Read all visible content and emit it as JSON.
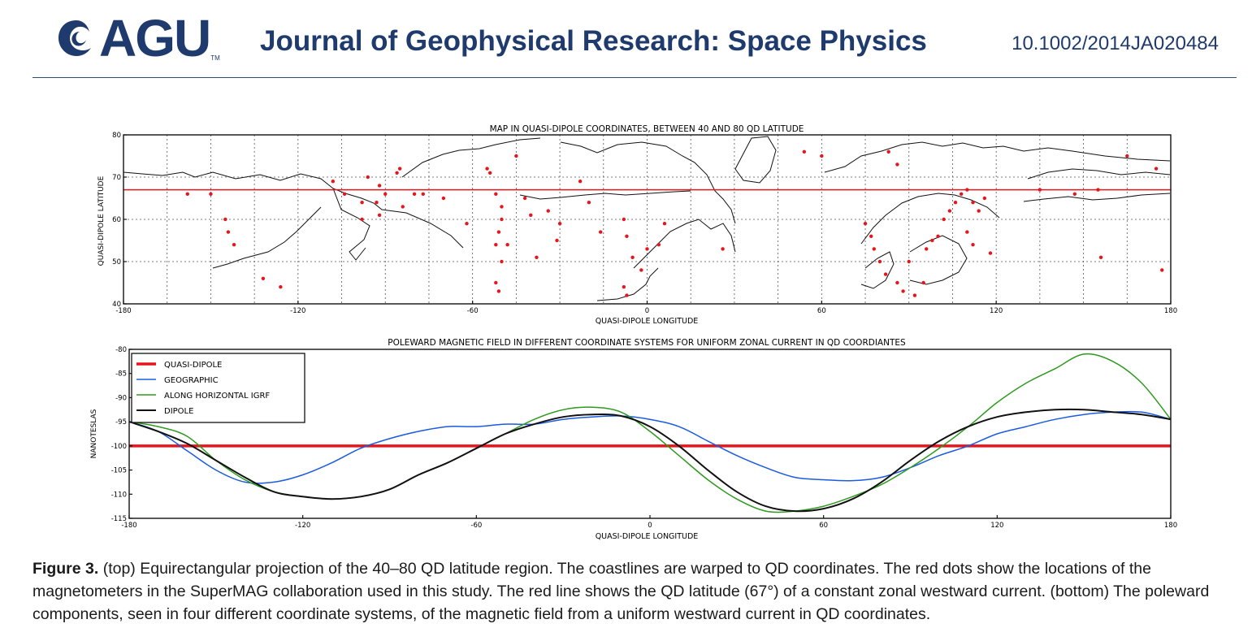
{
  "header": {
    "logo_text": "AGU",
    "logo_tm": "TM",
    "journal_title": "Journal of Geophysical Research: Space Physics",
    "doi": "10.1002/2014JA020484"
  },
  "colors": {
    "brand": "#1f3b6e",
    "qd": "#e8141b",
    "geographic": "#1a5be0",
    "igrf": "#2e9a1e",
    "dipole": "#111111"
  },
  "chart_data": [
    {
      "type": "scatter",
      "title": "MAP IN QUASI-DIPOLE COORDINATES, BETWEEN 40 AND 80 QD LATITUDE",
      "xlabel": "QUASI-DIPOLE LONGITUDE",
      "ylabel": "QUASI-DIPOLE LATITUDE",
      "xlim": [
        -180,
        180
      ],
      "ylim": [
        40,
        80
      ],
      "xticks": [
        "-180",
        "-120",
        "-60",
        "0",
        "60",
        "120",
        "180"
      ],
      "yticks": [
        "40",
        "50",
        "60",
        "70",
        "80"
      ],
      "grid": true,
      "reference_line_lat": 67,
      "stations": [
        [
          -158,
          66
        ],
        [
          -150,
          66
        ],
        [
          -145,
          60
        ],
        [
          -144,
          57
        ],
        [
          -142,
          54
        ],
        [
          -132,
          46
        ],
        [
          -126,
          44
        ],
        [
          -108,
          69
        ],
        [
          -104,
          66
        ],
        [
          -98,
          64
        ],
        [
          -98,
          60
        ],
        [
          -92,
          68
        ],
        [
          -93,
          64
        ],
        [
          -92,
          61
        ],
        [
          -90,
          66
        ],
        [
          -86,
          71
        ],
        [
          -84,
          63
        ],
        [
          -80,
          66
        ],
        [
          -77,
          66
        ],
        [
          -70,
          65
        ],
        [
          -62,
          59
        ],
        [
          -55,
          72
        ],
        [
          -54,
          71
        ],
        [
          -52,
          66
        ],
        [
          -50,
          63
        ],
        [
          -50,
          60
        ],
        [
          -51,
          57
        ],
        [
          -52,
          54
        ],
        [
          -48,
          54
        ],
        [
          -50,
          50
        ],
        [
          -52,
          45
        ],
        [
          -51,
          43
        ],
        [
          -42,
          65
        ],
        [
          -40,
          61
        ],
        [
          -38,
          51
        ],
        [
          -34,
          62
        ],
        [
          -31,
          55
        ],
        [
          -30,
          59
        ],
        [
          -23,
          69
        ],
        [
          -20,
          64
        ],
        [
          -16,
          57
        ],
        [
          -8,
          60
        ],
        [
          -5,
          51
        ],
        [
          -2,
          48
        ],
        [
          -7,
          56
        ],
        [
          0,
          53
        ],
        [
          4,
          54
        ],
        [
          6,
          59
        ],
        [
          -8,
          44
        ],
        [
          -7,
          42
        ],
        [
          26,
          53
        ],
        [
          54,
          76
        ],
        [
          60,
          75
        ],
        [
          75,
          59
        ],
        [
          77,
          56
        ],
        [
          78,
          53
        ],
        [
          80,
          50
        ],
        [
          82,
          47
        ],
        [
          86,
          45
        ],
        [
          88,
          43
        ],
        [
          90,
          50
        ],
        [
          92,
          42
        ],
        [
          95,
          45
        ],
        [
          96,
          53
        ],
        [
          98,
          55
        ],
        [
          100,
          56
        ],
        [
          102,
          60
        ],
        [
          104,
          62
        ],
        [
          106,
          64
        ],
        [
          108,
          66
        ],
        [
          110,
          67
        ],
        [
          112,
          64
        ],
        [
          114,
          62
        ],
        [
          116,
          65
        ],
        [
          110,
          57
        ],
        [
          112,
          54
        ],
        [
          118,
          52
        ],
        [
          135,
          67
        ],
        [
          147,
          66
        ],
        [
          155,
          67
        ],
        [
          156,
          51
        ],
        [
          165,
          75
        ],
        [
          175,
          72
        ],
        [
          177,
          48
        ],
        [
          83,
          76
        ],
        [
          86,
          73
        ],
        [
          -96,
          70
        ],
        [
          -85,
          72
        ],
        [
          -45,
          75
        ]
      ]
    },
    {
      "type": "line",
      "title": "POLEWARD MAGNETIC FIELD IN DIFFERENT COORDINATE SYSTEMS FOR UNIFORM ZONAL CURRENT IN QD COORDIANTES",
      "xlabel": "QUASI-DIPOLE LONGITUDE",
      "ylabel": "NANOTESLAS",
      "xlim": [
        -180,
        180
      ],
      "ylim": [
        -115,
        -80
      ],
      "xticks": [
        "-180",
        "-120",
        "-60",
        "0",
        "60",
        "120",
        "180"
      ],
      "yticks": [
        "-80",
        "-85",
        "-90",
        "-95",
        "-100",
        "-105",
        "-110",
        "-115"
      ],
      "legend_position": "top-left",
      "x": [
        -180,
        -170,
        -160,
        -150,
        -140,
        -130,
        -120,
        -110,
        -100,
        -90,
        -80,
        -70,
        -60,
        -50,
        -40,
        -30,
        -20,
        -10,
        0,
        10,
        20,
        30,
        40,
        50,
        60,
        70,
        80,
        90,
        100,
        110,
        120,
        130,
        140,
        150,
        160,
        170,
        180
      ],
      "series": [
        {
          "name": "QUASI-DIPOLE",
          "color": "#e8141b",
          "width": 3.5,
          "values": [
            -100,
            -100,
            -100,
            -100,
            -100,
            -100,
            -100,
            -100,
            -100,
            -100,
            -100,
            -100,
            -100,
            -100,
            -100,
            -100,
            -100,
            -100,
            -100,
            -100,
            -100,
            -100,
            -100,
            -100,
            -100,
            -100,
            -100,
            -100,
            -100,
            -100,
            -100,
            -100,
            -100,
            -100,
            -100,
            -100,
            -100
          ]
        },
        {
          "name": "GEOGRAPHIC",
          "color": "#1a5be0",
          "width": 1.5,
          "values": [
            -95,
            -97,
            -101,
            -105,
            -107.5,
            -107.5,
            -106,
            -103.5,
            -100.5,
            -98.5,
            -97,
            -96,
            -96,
            -95.5,
            -95.5,
            -94.5,
            -94,
            -93.8,
            -94.5,
            -96,
            -99,
            -102,
            -104.5,
            -106.5,
            -107,
            -107.2,
            -106.5,
            -104.5,
            -102,
            -100,
            -97.5,
            -96,
            -94.5,
            -93.5,
            -93,
            -93,
            -94.5
          ]
        },
        {
          "name": "ALONG HORIZONTAL IGRF",
          "color": "#2e9a1e",
          "width": 1.5,
          "values": [
            -95,
            -96,
            -98,
            -103,
            -107,
            -109.5,
            -110.5,
            -111,
            -110.5,
            -109,
            -106,
            -103.5,
            -100.5,
            -97.5,
            -94.5,
            -92.5,
            -92,
            -93,
            -97,
            -102,
            -107,
            -111,
            -113.5,
            -113.5,
            -112.5,
            -110.5,
            -108,
            -104.5,
            -100.5,
            -96,
            -91,
            -87,
            -84,
            -81,
            -82.5,
            -87,
            -94.5
          ]
        },
        {
          "name": "DIPOLE",
          "color": "#111111",
          "width": 2,
          "values": [
            -95,
            -97,
            -99.5,
            -103,
            -106.5,
            -109.5,
            -110.5,
            -111,
            -110.5,
            -109,
            -106,
            -103.5,
            -100.5,
            -97.5,
            -95.5,
            -94,
            -93.5,
            -93.8,
            -96,
            -100,
            -105,
            -109.5,
            -112.5,
            -113.5,
            -113,
            -111,
            -107.5,
            -103,
            -99,
            -96,
            -94,
            -93,
            -92.5,
            -92.5,
            -93,
            -93.5,
            -94.5
          ]
        }
      ]
    }
  ],
  "caption": {
    "label": "Figure 3.",
    "text": " (top) Equirectangular projection of the 40–80 QD latitude region. The coastlines are warped to QD coordinates. The red dots show the locations of the magnetometers in the SuperMAG collaboration used in this study. The red line shows the QD latitude (67°) of a constant zonal westward current. (bottom) The poleward components, seen in four different coordinate systems, of the magnetic field from a uniform westward current in QD coordinates."
  }
}
